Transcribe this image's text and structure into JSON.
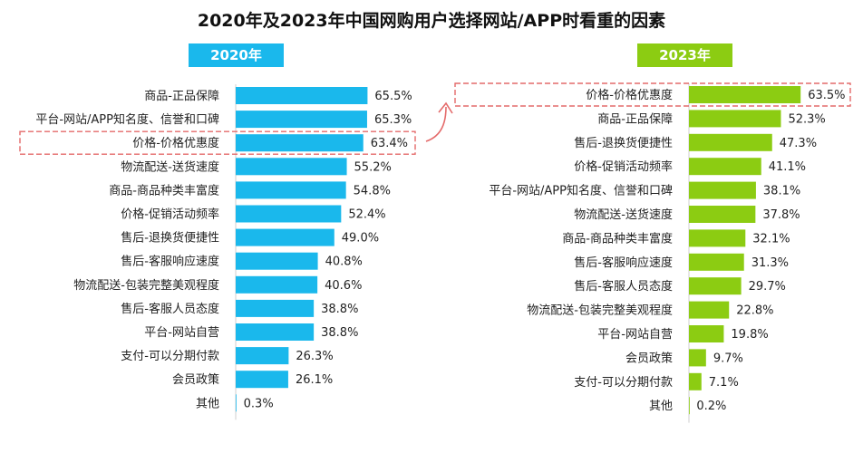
{
  "title": "2020年及2023年中国网购用户选择网站/APP时看重的因素",
  "colors": {
    "series_2020": "#1ab8ec",
    "series_2023": "#8ccc12",
    "highlight": "#e46a6a"
  },
  "chart_data": [
    {
      "type": "bar",
      "orientation": "horizontal",
      "name": "2020年",
      "categories": [
        "商品-正品保障",
        "平台-网站/APP知名度、信誉和口碑",
        "价格-价格优惠度",
        "物流配送-送货速度",
        "商品-商品种类丰富度",
        "价格-促销活动频率",
        "售后-退换货便捷性",
        "售后-客服响应速度",
        "物流配送-包装完整美观程度",
        "售后-客服人员态度",
        "平台-网站自营",
        "支付-可以分期付款",
        "会员政策",
        "其他"
      ],
      "values": [
        65.5,
        65.3,
        63.4,
        55.2,
        54.8,
        52.4,
        49.0,
        40.8,
        40.6,
        38.8,
        38.8,
        26.3,
        26.1,
        0.3
      ],
      "value_labels": [
        "65.5%",
        "65.3%",
        "63.4%",
        "55.2%",
        "54.8%",
        "52.4%",
        "49.0%",
        "40.8%",
        "40.6%",
        "38.8%",
        "38.8%",
        "26.3%",
        "26.1%",
        "0.3%"
      ],
      "highlighted_category": "价格-价格优惠度"
    },
    {
      "type": "bar",
      "orientation": "horizontal",
      "name": "2023年",
      "categories": [
        "价格-价格优惠度",
        "商品-正品保障",
        "售后-退换货便捷性",
        "价格-促销活动频率",
        "平台-网站/APP知名度、信誉和口碑",
        "物流配送-送货速度",
        "商品-商品种类丰富度",
        "售后-客服响应速度",
        "售后-客服人员态度",
        "物流配送-包装完整美观程度",
        "平台-网站自营",
        "会员政策",
        "支付-可以分期付款",
        "其他"
      ],
      "values": [
        63.5,
        52.3,
        47.3,
        41.1,
        38.1,
        37.8,
        32.1,
        31.3,
        29.7,
        22.8,
        19.8,
        9.7,
        7.1,
        0.2
      ],
      "value_labels": [
        "63.5%",
        "52.3%",
        "47.3%",
        "41.1%",
        "38.1%",
        "37.8%",
        "32.1%",
        "31.3%",
        "29.7%",
        "22.8%",
        "19.8%",
        "9.7%",
        "7.1%",
        "0.2%"
      ],
      "highlighted_category": "价格-价格优惠度"
    }
  ]
}
